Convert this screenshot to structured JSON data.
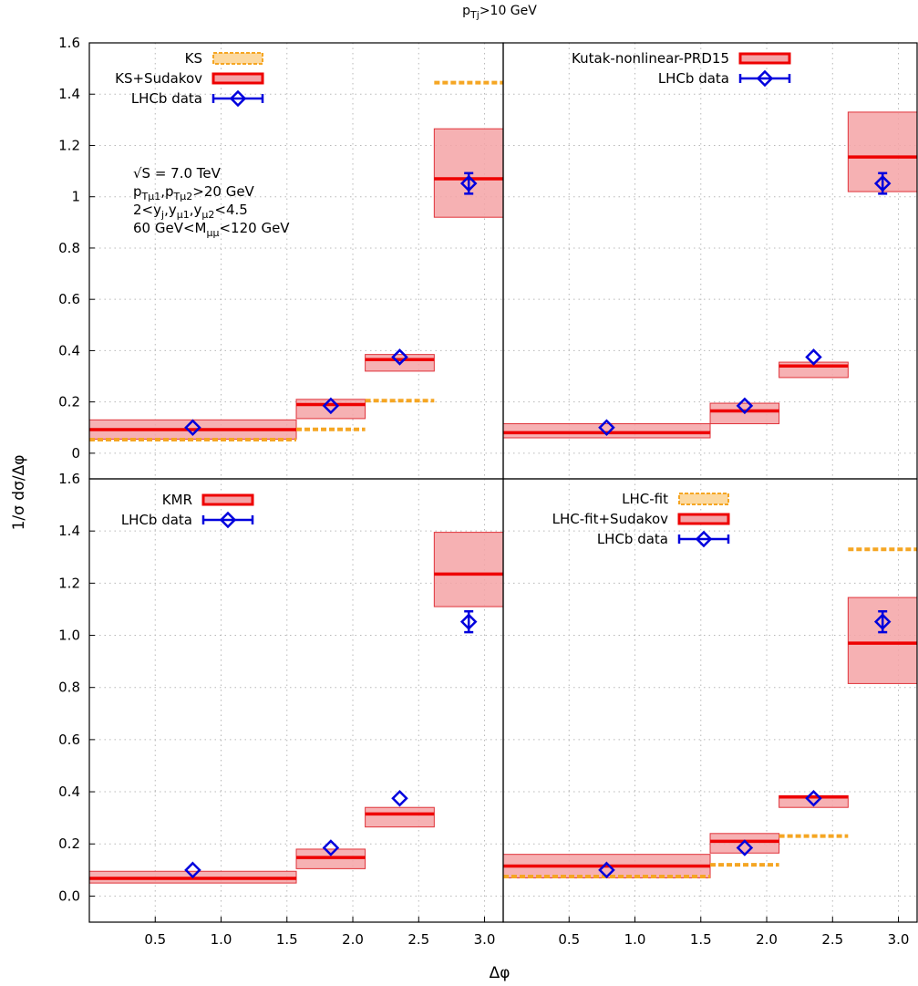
{
  "figure": {
    "title_text": "p",
    "title_sub": "Tj",
    "title_rest": ">10 GeV",
    "xlabel": "Δφ",
    "ylabel": "1/σ dσ/Δφ"
  },
  "colors": {
    "band_fill": "#f4a3a6",
    "band_stroke": "#e0333a",
    "central_line": "#ee0000",
    "ks_dashed": "#f5a623",
    "data_marker": "#0000dd"
  },
  "chart_data": [
    {
      "type": "bar",
      "panel": "top-left",
      "xlim": [
        0,
        3.1416
      ],
      "ylim": [
        -0.1,
        1.6
      ],
      "x_ticks": [],
      "y_ticks": [
        {
          "v": 0,
          "label": "0"
        },
        {
          "v": 0.2,
          "label": "0.2"
        },
        {
          "v": 0.4,
          "label": "0.4"
        },
        {
          "v": 0.6,
          "label": "0.6"
        },
        {
          "v": 0.8,
          "label": "0.8"
        },
        {
          "v": 1.0,
          "label": "1"
        },
        {
          "v": 1.2,
          "label": "1.2"
        },
        {
          "v": 1.4,
          "label": "1.4"
        },
        {
          "v": 1.6,
          "label": "1.6"
        }
      ],
      "bins": [
        [
          0,
          1.571
        ],
        [
          1.571,
          2.094
        ],
        [
          2.094,
          2.618
        ],
        [
          2.618,
          3.1416
        ]
      ],
      "bands": [
        {
          "central": 0.092,
          "low": 0.055,
          "high": 0.13
        },
        {
          "central": 0.19,
          "low": 0.135,
          "high": 0.21
        },
        {
          "central": 0.365,
          "low": 0.32,
          "high": 0.385
        },
        {
          "central": 1.07,
          "low": 0.92,
          "high": 1.265
        }
      ],
      "dashed": [
        0.053,
        0.093,
        0.205,
        1.445
      ],
      "data": [
        {
          "x": 0.785,
          "y": 0.1,
          "err": 0.0
        },
        {
          "x": 1.833,
          "y": 0.185,
          "err": 0.0
        },
        {
          "x": 2.356,
          "y": 0.375,
          "err": 0.0
        },
        {
          "x": 2.88,
          "y": 1.052,
          "err": 0.04
        }
      ],
      "legend": [
        {
          "label": "KS",
          "style": "dashed"
        },
        {
          "label": "KS+Sudakov",
          "style": "band"
        },
        {
          "label": "LHCb data",
          "style": "data"
        }
      ],
      "info": [
        {
          "text": "√S = 7.0 TeV",
          "parts": []
        },
        {
          "text": "",
          "parts": [
            {
              "t": "p"
            },
            {
              "t": "Tμ1",
              "sub": true
            },
            {
              "t": ",p"
            },
            {
              "t": "Tμ2",
              "sub": true
            },
            {
              "t": ">20 GeV"
            }
          ]
        },
        {
          "text": "",
          "parts": [
            {
              "t": "2<y"
            },
            {
              "t": "j",
              "sub": true
            },
            {
              "t": ",y"
            },
            {
              "t": "μ1",
              "sub": true
            },
            {
              "t": ",y"
            },
            {
              "t": "μ2",
              "sub": true
            },
            {
              "t": "<4.5"
            }
          ]
        },
        {
          "text": "",
          "parts": [
            {
              "t": "60 GeV<M"
            },
            {
              "t": "μμ",
              "sub": true
            },
            {
              "t": "<120 GeV"
            }
          ]
        }
      ]
    },
    {
      "type": "bar",
      "panel": "top-right",
      "xlim": [
        0,
        3.1416
      ],
      "ylim": [
        -0.1,
        1.6
      ],
      "x_ticks": [],
      "y_ticks": [],
      "bins": [
        [
          0,
          1.571
        ],
        [
          1.571,
          2.094
        ],
        [
          2.094,
          2.618
        ],
        [
          2.618,
          3.1416
        ]
      ],
      "bands": [
        {
          "central": 0.08,
          "low": 0.06,
          "high": 0.115
        },
        {
          "central": 0.165,
          "low": 0.115,
          "high": 0.195
        },
        {
          "central": 0.34,
          "low": 0.295,
          "high": 0.355
        },
        {
          "central": 1.155,
          "low": 1.02,
          "high": 1.33
        }
      ],
      "dashed": [],
      "data": [
        {
          "x": 0.785,
          "y": 0.1,
          "err": 0.0
        },
        {
          "x": 1.833,
          "y": 0.185,
          "err": 0.0
        },
        {
          "x": 2.356,
          "y": 0.375,
          "err": 0.0
        },
        {
          "x": 2.88,
          "y": 1.052,
          "err": 0.04
        }
      ],
      "legend": [
        {
          "label": "Kutak-nonlinear-PRD15",
          "style": "band"
        },
        {
          "label": "LHCb data",
          "style": "data"
        }
      ],
      "info": []
    },
    {
      "type": "bar",
      "panel": "bottom-left",
      "xlim": [
        0,
        3.1416
      ],
      "ylim": [
        -0.1,
        1.6
      ],
      "x_ticks": [
        {
          "v": 0.5,
          "label": "0.5"
        },
        {
          "v": 1.0,
          "label": "1.0"
        },
        {
          "v": 1.5,
          "label": "1.5"
        },
        {
          "v": 2.0,
          "label": "2.0"
        },
        {
          "v": 2.5,
          "label": "2.5"
        },
        {
          "v": 3.0,
          "label": "3.0"
        }
      ],
      "y_ticks": [
        {
          "v": 0,
          "label": "0.0"
        },
        {
          "v": 0.2,
          "label": "0.2"
        },
        {
          "v": 0.4,
          "label": "0.4"
        },
        {
          "v": 0.6,
          "label": "0.6"
        },
        {
          "v": 0.8,
          "label": "0.8"
        },
        {
          "v": 1.0,
          "label": "1.0"
        },
        {
          "v": 1.2,
          "label": "1.2"
        },
        {
          "v": 1.4,
          "label": "1.4"
        },
        {
          "v": 1.6,
          "label": "1.6"
        }
      ],
      "bins": [
        [
          0,
          1.571
        ],
        [
          1.571,
          2.094
        ],
        [
          2.094,
          2.618
        ],
        [
          2.618,
          3.1416
        ]
      ],
      "bands": [
        {
          "central": 0.068,
          "low": 0.05,
          "high": 0.095
        },
        {
          "central": 0.148,
          "low": 0.105,
          "high": 0.18
        },
        {
          "central": 0.315,
          "low": 0.265,
          "high": 0.34
        },
        {
          "central": 1.235,
          "low": 1.11,
          "high": 1.395
        }
      ],
      "dashed": [],
      "data": [
        {
          "x": 0.785,
          "y": 0.1,
          "err": 0.0
        },
        {
          "x": 1.833,
          "y": 0.185,
          "err": 0.0
        },
        {
          "x": 2.356,
          "y": 0.375,
          "err": 0.0
        },
        {
          "x": 2.88,
          "y": 1.052,
          "err": 0.04
        }
      ],
      "legend": [
        {
          "label": "KMR",
          "style": "band"
        },
        {
          "label": "LHCb data",
          "style": "data"
        }
      ],
      "info": []
    },
    {
      "type": "bar",
      "panel": "bottom-right",
      "xlim": [
        0,
        3.1416
      ],
      "ylim": [
        -0.1,
        1.6
      ],
      "x_ticks": [
        {
          "v": 0.5,
          "label": "0.5"
        },
        {
          "v": 1.0,
          "label": "1.0"
        },
        {
          "v": 1.5,
          "label": "1.5"
        },
        {
          "v": 2.0,
          "label": "2.0"
        },
        {
          "v": 2.5,
          "label": "2.5"
        },
        {
          "v": 3.0,
          "label": "3.0"
        }
      ],
      "y_ticks": [],
      "bins": [
        [
          0,
          1.571
        ],
        [
          1.571,
          2.094
        ],
        [
          2.094,
          2.618
        ],
        [
          2.618,
          3.1416
        ]
      ],
      "bands": [
        {
          "central": 0.115,
          "low": 0.07,
          "high": 0.16
        },
        {
          "central": 0.21,
          "low": 0.165,
          "high": 0.24
        },
        {
          "central": 0.38,
          "low": 0.34,
          "high": 0.385
        },
        {
          "central": 0.97,
          "low": 0.815,
          "high": 1.145
        }
      ],
      "dashed": [
        0.075,
        0.12,
        0.23,
        1.33
      ],
      "data": [
        {
          "x": 0.785,
          "y": 0.1,
          "err": 0.0
        },
        {
          "x": 1.833,
          "y": 0.185,
          "err": 0.0
        },
        {
          "x": 2.356,
          "y": 0.375,
          "err": 0.0
        },
        {
          "x": 2.88,
          "y": 1.052,
          "err": 0.04
        }
      ],
      "legend": [
        {
          "label": "LHC-fit",
          "style": "dashed"
        },
        {
          "label": "LHC-fit+Sudakov",
          "style": "band"
        },
        {
          "label": "LHCb data",
          "style": "data"
        }
      ],
      "info": []
    }
  ]
}
